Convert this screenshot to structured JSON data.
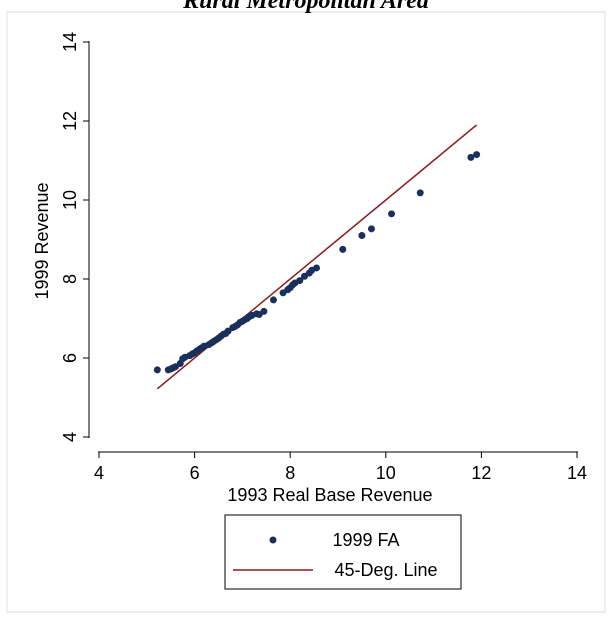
{
  "chart_data": {
    "type": "scatter",
    "title": "Rural Metropolitan Area",
    "xlabel": "1993 Real Base Revenue",
    "ylabel": "1999 Revenue",
    "xlim": [
      4,
      14
    ],
    "ylim": [
      4,
      14
    ],
    "xticks": [
      4,
      6,
      8,
      10,
      12,
      14
    ],
    "yticks": [
      4,
      6,
      8,
      10,
      12,
      14
    ],
    "xtick_labels": [
      "4",
      "6",
      "8",
      "10",
      "12",
      "14"
    ],
    "ytick_labels": [
      "4",
      "6",
      "8",
      "10",
      "12",
      "14"
    ],
    "grid": false,
    "legend": {
      "position": "bottom",
      "entries": [
        "1999 FA",
        "45-Deg. Line"
      ]
    },
    "colors": {
      "points": "#1a2f5a",
      "line": "#8b1a1a"
    },
    "series": [
      {
        "name": "1999 FA",
        "kind": "scatter",
        "points": [
          [
            5.22,
            5.7
          ],
          [
            5.45,
            5.7
          ],
          [
            5.5,
            5.72
          ],
          [
            5.55,
            5.75
          ],
          [
            5.6,
            5.78
          ],
          [
            5.7,
            5.86
          ],
          [
            5.75,
            5.98
          ],
          [
            5.8,
            6.02
          ],
          [
            5.9,
            6.06
          ],
          [
            5.95,
            6.1
          ],
          [
            6.0,
            6.13
          ],
          [
            6.05,
            6.18
          ],
          [
            6.1,
            6.22
          ],
          [
            6.15,
            6.26
          ],
          [
            6.2,
            6.3
          ],
          [
            6.3,
            6.34
          ],
          [
            6.35,
            6.38
          ],
          [
            6.4,
            6.42
          ],
          [
            6.45,
            6.46
          ],
          [
            6.5,
            6.5
          ],
          [
            6.55,
            6.55
          ],
          [
            6.6,
            6.6
          ],
          [
            6.65,
            6.62
          ],
          [
            6.7,
            6.68
          ],
          [
            6.8,
            6.77
          ],
          [
            6.85,
            6.8
          ],
          [
            6.9,
            6.84
          ],
          [
            6.95,
            6.9
          ],
          [
            7.0,
            6.93
          ],
          [
            7.05,
            6.97
          ],
          [
            7.1,
            7.0
          ],
          [
            7.15,
            7.05
          ],
          [
            7.2,
            7.08
          ],
          [
            7.3,
            7.12
          ],
          [
            7.35,
            7.1
          ],
          [
            7.45,
            7.18
          ],
          [
            7.65,
            7.47
          ],
          [
            7.85,
            7.65
          ],
          [
            7.95,
            7.73
          ],
          [
            8.0,
            7.78
          ],
          [
            8.05,
            7.85
          ],
          [
            8.1,
            7.9
          ],
          [
            8.2,
            7.96
          ],
          [
            8.3,
            8.07
          ],
          [
            8.4,
            8.15
          ],
          [
            8.45,
            8.22
          ],
          [
            8.55,
            8.28
          ],
          [
            9.1,
            8.75
          ],
          [
            9.5,
            9.1
          ],
          [
            9.7,
            9.27
          ],
          [
            10.12,
            9.65
          ],
          [
            10.72,
            10.18
          ],
          [
            11.78,
            11.08
          ],
          [
            11.9,
            11.15
          ]
        ]
      },
      {
        "name": "45-Deg. Line",
        "kind": "line",
        "x": [
          5.22,
          11.9
        ],
        "y": [
          5.22,
          11.9
        ]
      }
    ]
  }
}
